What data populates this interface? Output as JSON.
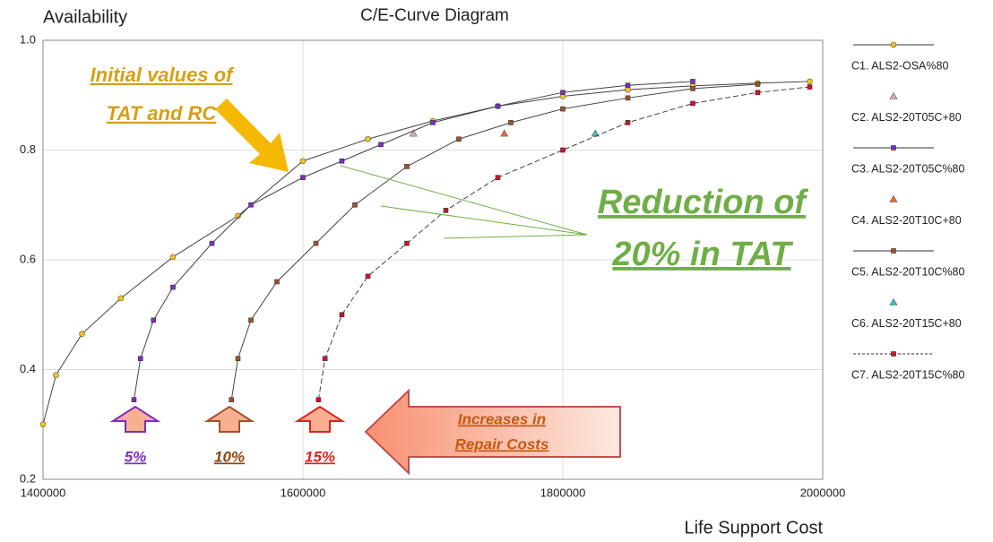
{
  "chart_data": {
    "type": "scatter",
    "title": "C/E-Curve Diagram",
    "y_label": "Availability",
    "x_label": "Life Support Cost",
    "xlim": [
      1400000,
      2000000
    ],
    "ylim": [
      0.2,
      1.0
    ],
    "xticks": [
      1400000,
      1600000,
      1800000,
      2000000
    ],
    "yticks": [
      0.2,
      0.4,
      0.6,
      0.8,
      {
        "value": 1,
        "label": "1.0"
      }
    ],
    "grid": true,
    "series": [
      {
        "name": "C1. ALS2-OSA%80",
        "color": "#f5c518",
        "marker": "circle",
        "line": "solid",
        "x": [
          1400000,
          1410000,
          1430000,
          1460000,
          1500000,
          1550000,
          1600000,
          1650000,
          1700000,
          1750000,
          1800000,
          1850000,
          1900000,
          1950000,
          1990000
        ],
        "y": [
          0.3,
          0.39,
          0.465,
          0.53,
          0.605,
          0.68,
          0.78,
          0.82,
          0.853,
          0.88,
          0.898,
          0.91,
          0.917,
          0.922,
          0.925
        ]
      },
      {
        "name": "C2. ALS2-20T05C+80",
        "color": "#d8a8bc",
        "marker": "triangle",
        "line": "none",
        "x": [
          1685000
        ],
        "y": [
          0.83
        ]
      },
      {
        "name": "C3. ALS2-20T05C%80",
        "color": "#7b2fc0",
        "marker": "square",
        "line": "solid",
        "x": [
          1470000,
          1475000,
          1485000,
          1500000,
          1530000,
          1560000,
          1600000,
          1630000,
          1660000,
          1700000,
          1750000,
          1800000,
          1850000,
          1900000
        ],
        "y": [
          0.345,
          0.42,
          0.49,
          0.55,
          0.63,
          0.7,
          0.75,
          0.78,
          0.81,
          0.85,
          0.88,
          0.905,
          0.918,
          0.925
        ]
      },
      {
        "name": "C4. ALS2-20T10C+80",
        "color": "#e07030",
        "marker": "triangle",
        "line": "none",
        "x": [
          1755000
        ],
        "y": [
          0.83
        ]
      },
      {
        "name": "C5. ALS2-20T10C%80",
        "color": "#a0522d",
        "marker": "square",
        "line": "solid",
        "x": [
          1545000,
          1550000,
          1560000,
          1580000,
          1610000,
          1640000,
          1680000,
          1720000,
          1760000,
          1800000,
          1850000,
          1900000,
          1950000
        ],
        "y": [
          0.345,
          0.42,
          0.49,
          0.56,
          0.63,
          0.7,
          0.77,
          0.82,
          0.85,
          0.875,
          0.895,
          0.912,
          0.92
        ]
      },
      {
        "name": "C6. ALS2-20T15C+80",
        "color": "#40c0c0",
        "marker": "triangle",
        "line": "none",
        "x": [
          1825000
        ],
        "y": [
          0.83
        ]
      },
      {
        "name": "C7. ALS2-20T15C%80",
        "color": "#d0102a",
        "marker": "square",
        "line": "dashed",
        "x": [
          1612000,
          1617000,
          1630000,
          1650000,
          1680000,
          1710000,
          1750000,
          1800000,
          1850000,
          1900000,
          1950000,
          1990000
        ],
        "y": [
          0.345,
          0.42,
          0.5,
          0.57,
          0.63,
          0.69,
          0.75,
          0.8,
          0.85,
          0.885,
          0.905,
          0.915
        ]
      }
    ],
    "annotations": [
      "Initial values of",
      "TAT and RC",
      "Reduction of",
      "20% in TAT",
      "Increases in",
      "Repair Costs",
      "5%",
      "10%",
      "15%"
    ]
  }
}
